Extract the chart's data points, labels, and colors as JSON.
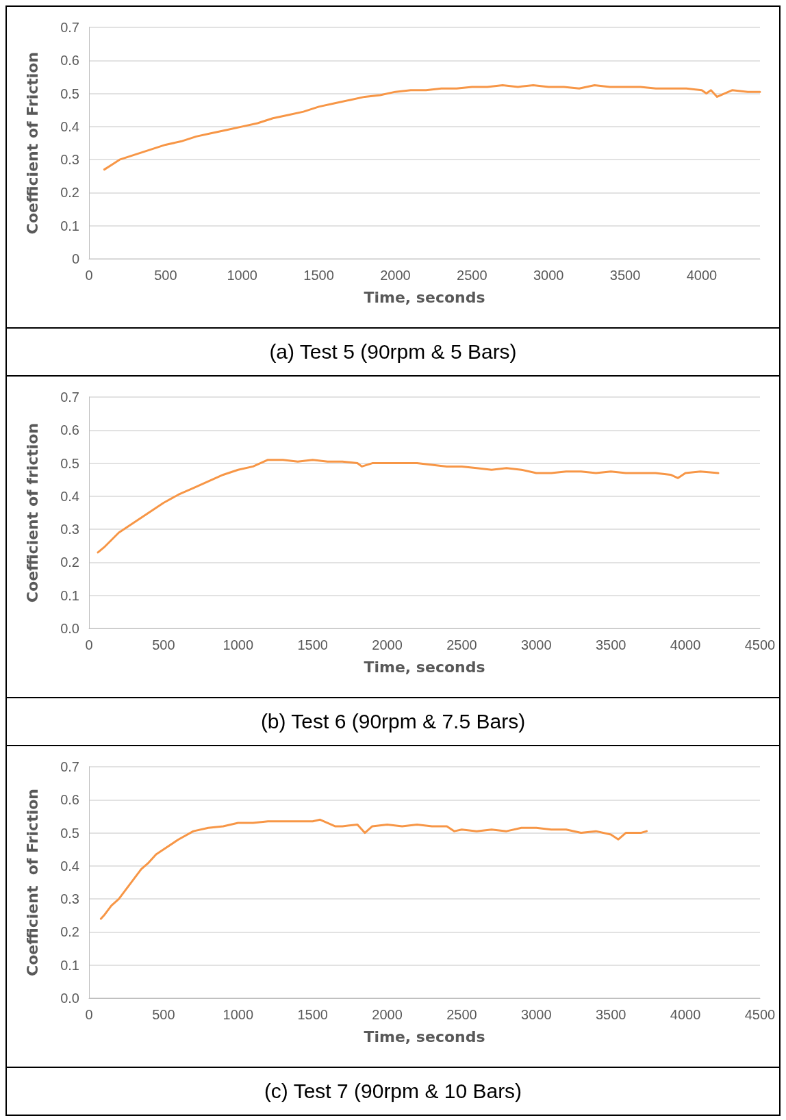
{
  "chart_data": [
    {
      "type": "line",
      "xlabel": "Time, seconds",
      "ylabel": "Coefficient of Friction",
      "annotations": [
        "(a) Test 5 (90rpm & 5 Bars)"
      ],
      "grid": "y",
      "xlim": [
        0,
        4380
      ],
      "xticks": [
        0,
        500,
        1000,
        1500,
        2000,
        2500,
        3000,
        3500,
        4000
      ],
      "ylim": [
        0,
        0.7
      ],
      "yticks": [
        0,
        0.1,
        0.2,
        0.3,
        0.4,
        0.5,
        0.6,
        0.7
      ],
      "series": [
        {
          "color": "#f79646",
          "x": [
            100,
            150,
            200,
            300,
            400,
            500,
            600,
            700,
            800,
            900,
            1000,
            1100,
            1200,
            1300,
            1400,
            1500,
            1600,
            1700,
            1800,
            1900,
            2000,
            2100,
            2200,
            2300,
            2400,
            2500,
            2600,
            2700,
            2800,
            2900,
            3000,
            3100,
            3200,
            3300,
            3400,
            3500,
            3600,
            3700,
            3800,
            3900,
            4000,
            4030,
            4060,
            4100,
            4200,
            4300,
            4380
          ],
          "values": [
            0.27,
            0.285,
            0.3,
            0.315,
            0.33,
            0.345,
            0.355,
            0.37,
            0.38,
            0.39,
            0.4,
            0.41,
            0.425,
            0.435,
            0.445,
            0.46,
            0.47,
            0.48,
            0.49,
            0.495,
            0.505,
            0.51,
            0.51,
            0.515,
            0.515,
            0.52,
            0.52,
            0.525,
            0.52,
            0.525,
            0.52,
            0.52,
            0.515,
            0.525,
            0.52,
            0.52,
            0.52,
            0.515,
            0.515,
            0.515,
            0.51,
            0.5,
            0.51,
            0.49,
            0.51,
            0.505,
            0.505
          ]
        }
      ]
    },
    {
      "type": "line",
      "xlabel": "Time, seconds",
      "ylabel": "Coefficient of friction",
      "annotations": [
        "(b) Test 6 (90rpm & 7.5 Bars)"
      ],
      "grid": "y",
      "xlim": [
        0,
        4500
      ],
      "xticks": [
        0,
        500,
        1000,
        1500,
        2000,
        2500,
        3000,
        3500,
        4000,
        4500
      ],
      "ylim": [
        0,
        0.7
      ],
      "yticks": [
        {
          "value": 0,
          "label": "0.0"
        },
        0.1,
        0.2,
        0.3,
        0.4,
        0.5,
        0.6,
        0.7
      ],
      "series": [
        {
          "color": "#f79646",
          "x": [
            60,
            100,
            200,
            300,
            400,
            500,
            600,
            700,
            800,
            900,
            1000,
            1100,
            1200,
            1300,
            1400,
            1500,
            1600,
            1700,
            1800,
            1830,
            1900,
            2000,
            2200,
            2300,
            2400,
            2500,
            2600,
            2700,
            2800,
            2900,
            3000,
            3100,
            3200,
            3300,
            3400,
            3500,
            3600,
            3700,
            3800,
            3900,
            3950,
            4000,
            4100,
            4220
          ],
          "values": [
            0.23,
            0.245,
            0.29,
            0.32,
            0.35,
            0.38,
            0.405,
            0.425,
            0.445,
            0.465,
            0.48,
            0.49,
            0.51,
            0.51,
            0.505,
            0.51,
            0.505,
            0.505,
            0.5,
            0.49,
            0.5,
            0.5,
            0.5,
            0.495,
            0.49,
            0.49,
            0.485,
            0.48,
            0.485,
            0.48,
            0.47,
            0.47,
            0.475,
            0.475,
            0.47,
            0.475,
            0.47,
            0.47,
            0.47,
            0.465,
            0.455,
            0.47,
            0.475,
            0.47
          ]
        }
      ]
    },
    {
      "type": "line",
      "xlabel": "Time, seconds",
      "ylabel": "Coefficient  of Friction",
      "annotations": [
        "(c) Test 7 (90rpm & 10 Bars)"
      ],
      "grid": "y",
      "xlim": [
        0,
        4500
      ],
      "xticks": [
        0,
        500,
        1000,
        1500,
        2000,
        2500,
        3000,
        3500,
        4000,
        4500
      ],
      "ylim": [
        0,
        0.7
      ],
      "yticks": [
        {
          "value": 0,
          "label": "0.0"
        },
        0.1,
        0.2,
        0.3,
        0.4,
        0.5,
        0.6,
        0.7
      ],
      "series": [
        {
          "color": "#f79646",
          "x": [
            80,
            100,
            150,
            200,
            250,
            300,
            350,
            400,
            450,
            500,
            600,
            700,
            800,
            900,
            1000,
            1100,
            1200,
            1300,
            1400,
            1500,
            1550,
            1600,
            1650,
            1700,
            1800,
            1850,
            1900,
            2000,
            2100,
            2200,
            2300,
            2400,
            2450,
            2500,
            2600,
            2700,
            2800,
            2900,
            3000,
            3100,
            3200,
            3300,
            3400,
            3500,
            3550,
            3600,
            3700,
            3740
          ],
          "values": [
            0.24,
            0.25,
            0.28,
            0.3,
            0.33,
            0.36,
            0.39,
            0.41,
            0.435,
            0.45,
            0.48,
            0.505,
            0.515,
            0.52,
            0.53,
            0.53,
            0.535,
            0.535,
            0.535,
            0.535,
            0.54,
            0.53,
            0.52,
            0.52,
            0.525,
            0.5,
            0.52,
            0.525,
            0.52,
            0.525,
            0.52,
            0.52,
            0.505,
            0.51,
            0.505,
            0.51,
            0.505,
            0.515,
            0.515,
            0.51,
            0.51,
            0.5,
            0.505,
            0.495,
            0.48,
            0.5,
            0.5,
            0.505
          ]
        }
      ]
    }
  ]
}
